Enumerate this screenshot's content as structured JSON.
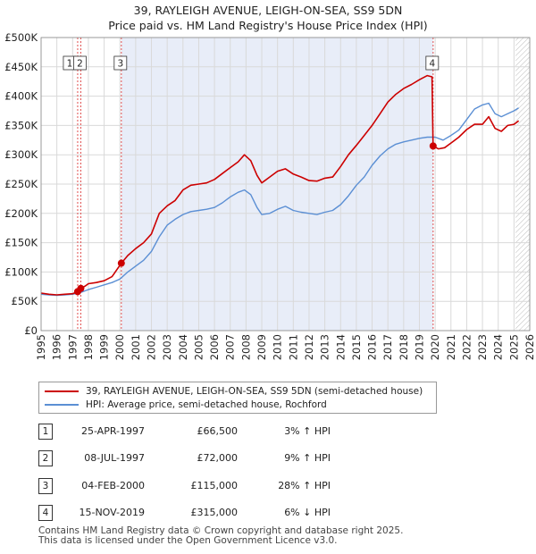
{
  "title_line1": "39, RAYLEIGH AVENUE, LEIGH-ON-SEA, SS9 5DN",
  "title_line2": "Price paid vs. HM Land Registry's House Price Index (HPI)",
  "legend": {
    "property_label": "39, RAYLEIGH AVENUE, LEIGH-ON-SEA, SS9 5DN (semi-detached house)",
    "hpi_label": "HPI: Average price, semi-detached house, Rochford"
  },
  "colors": {
    "property": "#cc0000",
    "hpi": "#5b8fd4",
    "shade": "#e8edf8",
    "grid": "#d9d9d9",
    "vline": "#e05050"
  },
  "sales": [
    {
      "num": "1",
      "date": "25-APR-1997",
      "price": "£66,500",
      "hpi": "3% ↑ HPI"
    },
    {
      "num": "2",
      "date": "08-JUL-1997",
      "price": "£72,000",
      "hpi": "9% ↑ HPI"
    },
    {
      "num": "3",
      "date": "04-FEB-2000",
      "price": "£115,000",
      "hpi": "28% ↑ HPI"
    },
    {
      "num": "4",
      "date": "15-NOV-2019",
      "price": "£315,000",
      "hpi": "6% ↓ HPI"
    }
  ],
  "footer_line1": "Contains HM Land Registry data © Crown copyright and database right 2025.",
  "footer_line2": "This data is licensed under the Open Government Licence v3.0.",
  "chart_data": {
    "type": "line",
    "title": "39, RAYLEIGH AVENUE, LEIGH-ON-SEA, SS9 5DN — Price paid vs. HM Land Registry's House Price Index (HPI)",
    "xlim": [
      1995,
      2026
    ],
    "ylim": [
      0,
      500000
    ],
    "x_ticks": [
      1995,
      1996,
      1997,
      1998,
      1999,
      2000,
      2001,
      2002,
      2003,
      2004,
      2005,
      2006,
      2007,
      2008,
      2009,
      2010,
      2011,
      2012,
      2013,
      2014,
      2015,
      2016,
      2017,
      2018,
      2019,
      2020,
      2021,
      2022,
      2023,
      2024,
      2025,
      2026
    ],
    "y_ticks": [
      {
        "value": 0,
        "label": "£0"
      },
      {
        "value": 50000,
        "label": "£50K"
      },
      {
        "value": 100000,
        "label": "£100K"
      },
      {
        "value": 150000,
        "label": "£150K"
      },
      {
        "value": 200000,
        "label": "£200K"
      },
      {
        "value": 250000,
        "label": "£250K"
      },
      {
        "value": 300000,
        "label": "£300K"
      },
      {
        "value": 350000,
        "label": "£350K"
      },
      {
        "value": 400000,
        "label": "£400K"
      },
      {
        "value": 450000,
        "label": "£450K"
      },
      {
        "value": 500000,
        "label": "£500K"
      }
    ],
    "shaded_range": [
      2000.09,
      2019.87
    ],
    "future_hatch_from": 2025.1,
    "sale_markers": [
      {
        "label": "1",
        "x": 1997.32,
        "y": 66500
      },
      {
        "label": "2",
        "x": 1997.52,
        "y": 72000
      },
      {
        "label": "3",
        "x": 2000.09,
        "y": 115000
      },
      {
        "label": "4",
        "x": 2019.87,
        "y": 315000
      }
    ],
    "series": [
      {
        "name": "39, RAYLEIGH AVENUE, LEIGH-ON-SEA, SS9 5DN (semi-detached house)",
        "x": [
          1995.0,
          1995.5,
          1996.0,
          1996.5,
          1997.0,
          1997.32,
          1997.52,
          1997.8,
          1998.0,
          1998.5,
          1999.0,
          1999.5,
          2000.09,
          2000.5,
          2001.0,
          2001.5,
          2002.0,
          2002.5,
          2003.0,
          2003.5,
          2004.0,
          2004.5,
          2005.0,
          2005.5,
          2006.0,
          2006.5,
          2007.0,
          2007.5,
          2007.9,
          2008.3,
          2008.7,
          2009.0,
          2009.5,
          2010.0,
          2010.5,
          2011.0,
          2011.5,
          2012.0,
          2012.5,
          2013.0,
          2013.5,
          2014.0,
          2014.5,
          2015.0,
          2015.5,
          2016.0,
          2016.5,
          2017.0,
          2017.5,
          2018.0,
          2018.5,
          2019.0,
          2019.5,
          2019.8,
          2019.87,
          2020.2,
          2020.6,
          2021.0,
          2021.5,
          2022.0,
          2022.5,
          2023.0,
          2023.4,
          2023.8,
          2024.2,
          2024.6,
          2025.0,
          2025.3
        ],
        "values": [
          64000,
          62000,
          61000,
          62000,
          63000,
          66500,
          72000,
          76000,
          80000,
          82000,
          85000,
          92000,
          115000,
          128000,
          140000,
          150000,
          165000,
          200000,
          213000,
          222000,
          240000,
          248000,
          250000,
          252000,
          258000,
          268000,
          278000,
          288000,
          300000,
          290000,
          265000,
          252000,
          262000,
          272000,
          276000,
          267000,
          262000,
          256000,
          255000,
          260000,
          262000,
          280000,
          300000,
          316000,
          333000,
          350000,
          370000,
          390000,
          403000,
          413000,
          420000,
          428000,
          435000,
          433000,
          315000,
          310000,
          312000,
          320000,
          330000,
          343000,
          352000,
          352000,
          365000,
          345000,
          340000,
          350000,
          352000,
          358000
        ]
      },
      {
        "name": "HPI: Average price, semi-detached house, Rochford",
        "x": [
          1995.0,
          1995.5,
          1996.0,
          1996.5,
          1997.0,
          1997.5,
          1998.0,
          1998.5,
          1999.0,
          1999.5,
          2000.0,
          2000.5,
          2001.0,
          2001.5,
          2002.0,
          2002.5,
          2003.0,
          2003.5,
          2004.0,
          2004.5,
          2005.0,
          2005.5,
          2006.0,
          2006.5,
          2007.0,
          2007.5,
          2007.9,
          2008.3,
          2008.7,
          2009.0,
          2009.5,
          2010.0,
          2010.5,
          2011.0,
          2011.5,
          2012.0,
          2012.5,
          2013.0,
          2013.5,
          2014.0,
          2014.5,
          2015.0,
          2015.5,
          2016.0,
          2016.5,
          2017.0,
          2017.5,
          2018.0,
          2018.5,
          2019.0,
          2019.5,
          2020.0,
          2020.5,
          2021.0,
          2021.5,
          2022.0,
          2022.5,
          2023.0,
          2023.4,
          2023.8,
          2024.2,
          2024.6,
          2025.0,
          2025.3
        ],
        "values": [
          62000,
          61000,
          60000,
          61000,
          62000,
          65000,
          70000,
          74000,
          78000,
          82000,
          88000,
          100000,
          110000,
          120000,
          135000,
          160000,
          180000,
          190000,
          198000,
          203000,
          205000,
          207000,
          210000,
          218000,
          228000,
          236000,
          240000,
          232000,
          210000,
          198000,
          200000,
          207000,
          212000,
          205000,
          202000,
          200000,
          198000,
          202000,
          205000,
          215000,
          230000,
          248000,
          262000,
          282000,
          298000,
          310000,
          318000,
          322000,
          325000,
          328000,
          330000,
          330000,
          325000,
          333000,
          342000,
          360000,
          378000,
          385000,
          388000,
          370000,
          365000,
          370000,
          375000,
          380000
        ]
      }
    ]
  }
}
